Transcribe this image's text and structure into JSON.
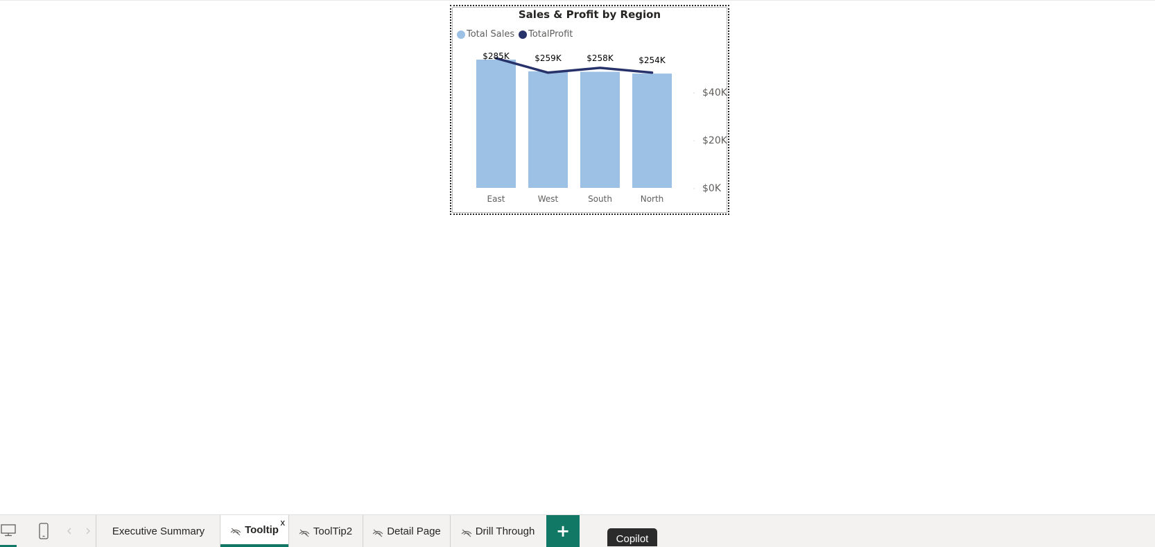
{
  "chart_data": {
    "type": "bar",
    "title": "Sales & Profit by Region",
    "categories": [
      "East",
      "West",
      "South",
      "North"
    ],
    "series": [
      {
        "name": "Total Sales",
        "kind": "bar",
        "color": "#9dc1e5",
        "values": [
          285000,
          259000,
          258000,
          254000
        ],
        "labels": [
          "$285K",
          "$259K",
          "$258K",
          "$254K"
        ]
      },
      {
        "name": "TotalProfit",
        "kind": "line",
        "color": "#27326b",
        "values": [
          54000,
          48000,
          50000,
          48000
        ]
      }
    ],
    "legend_position": "top-left",
    "secondary_axis": {
      "ticks": [
        "$0K",
        "$20K",
        "$40K"
      ],
      "range": [
        0,
        54000
      ]
    },
    "primary_axis": {
      "range": [
        0,
        285000
      ]
    },
    "xlabel": "",
    "ylabel": "",
    "grid": false
  },
  "tabbar": {
    "tabs": [
      {
        "label": "Executive Summary",
        "hidden": false,
        "active": false
      },
      {
        "label": "Tooltip",
        "hidden": true,
        "active": true
      },
      {
        "label": "ToolTip2",
        "hidden": true,
        "active": false
      },
      {
        "label": "Detail Page",
        "hidden": true,
        "active": false
      },
      {
        "label": "Drill Through",
        "hidden": true,
        "active": false
      }
    ],
    "close_label": "x",
    "add_label": "+"
  },
  "copilot": {
    "label": "Copilot"
  },
  "colors": {
    "accent": "#117865",
    "bar": "#9dc1e5",
    "line": "#27326b"
  }
}
